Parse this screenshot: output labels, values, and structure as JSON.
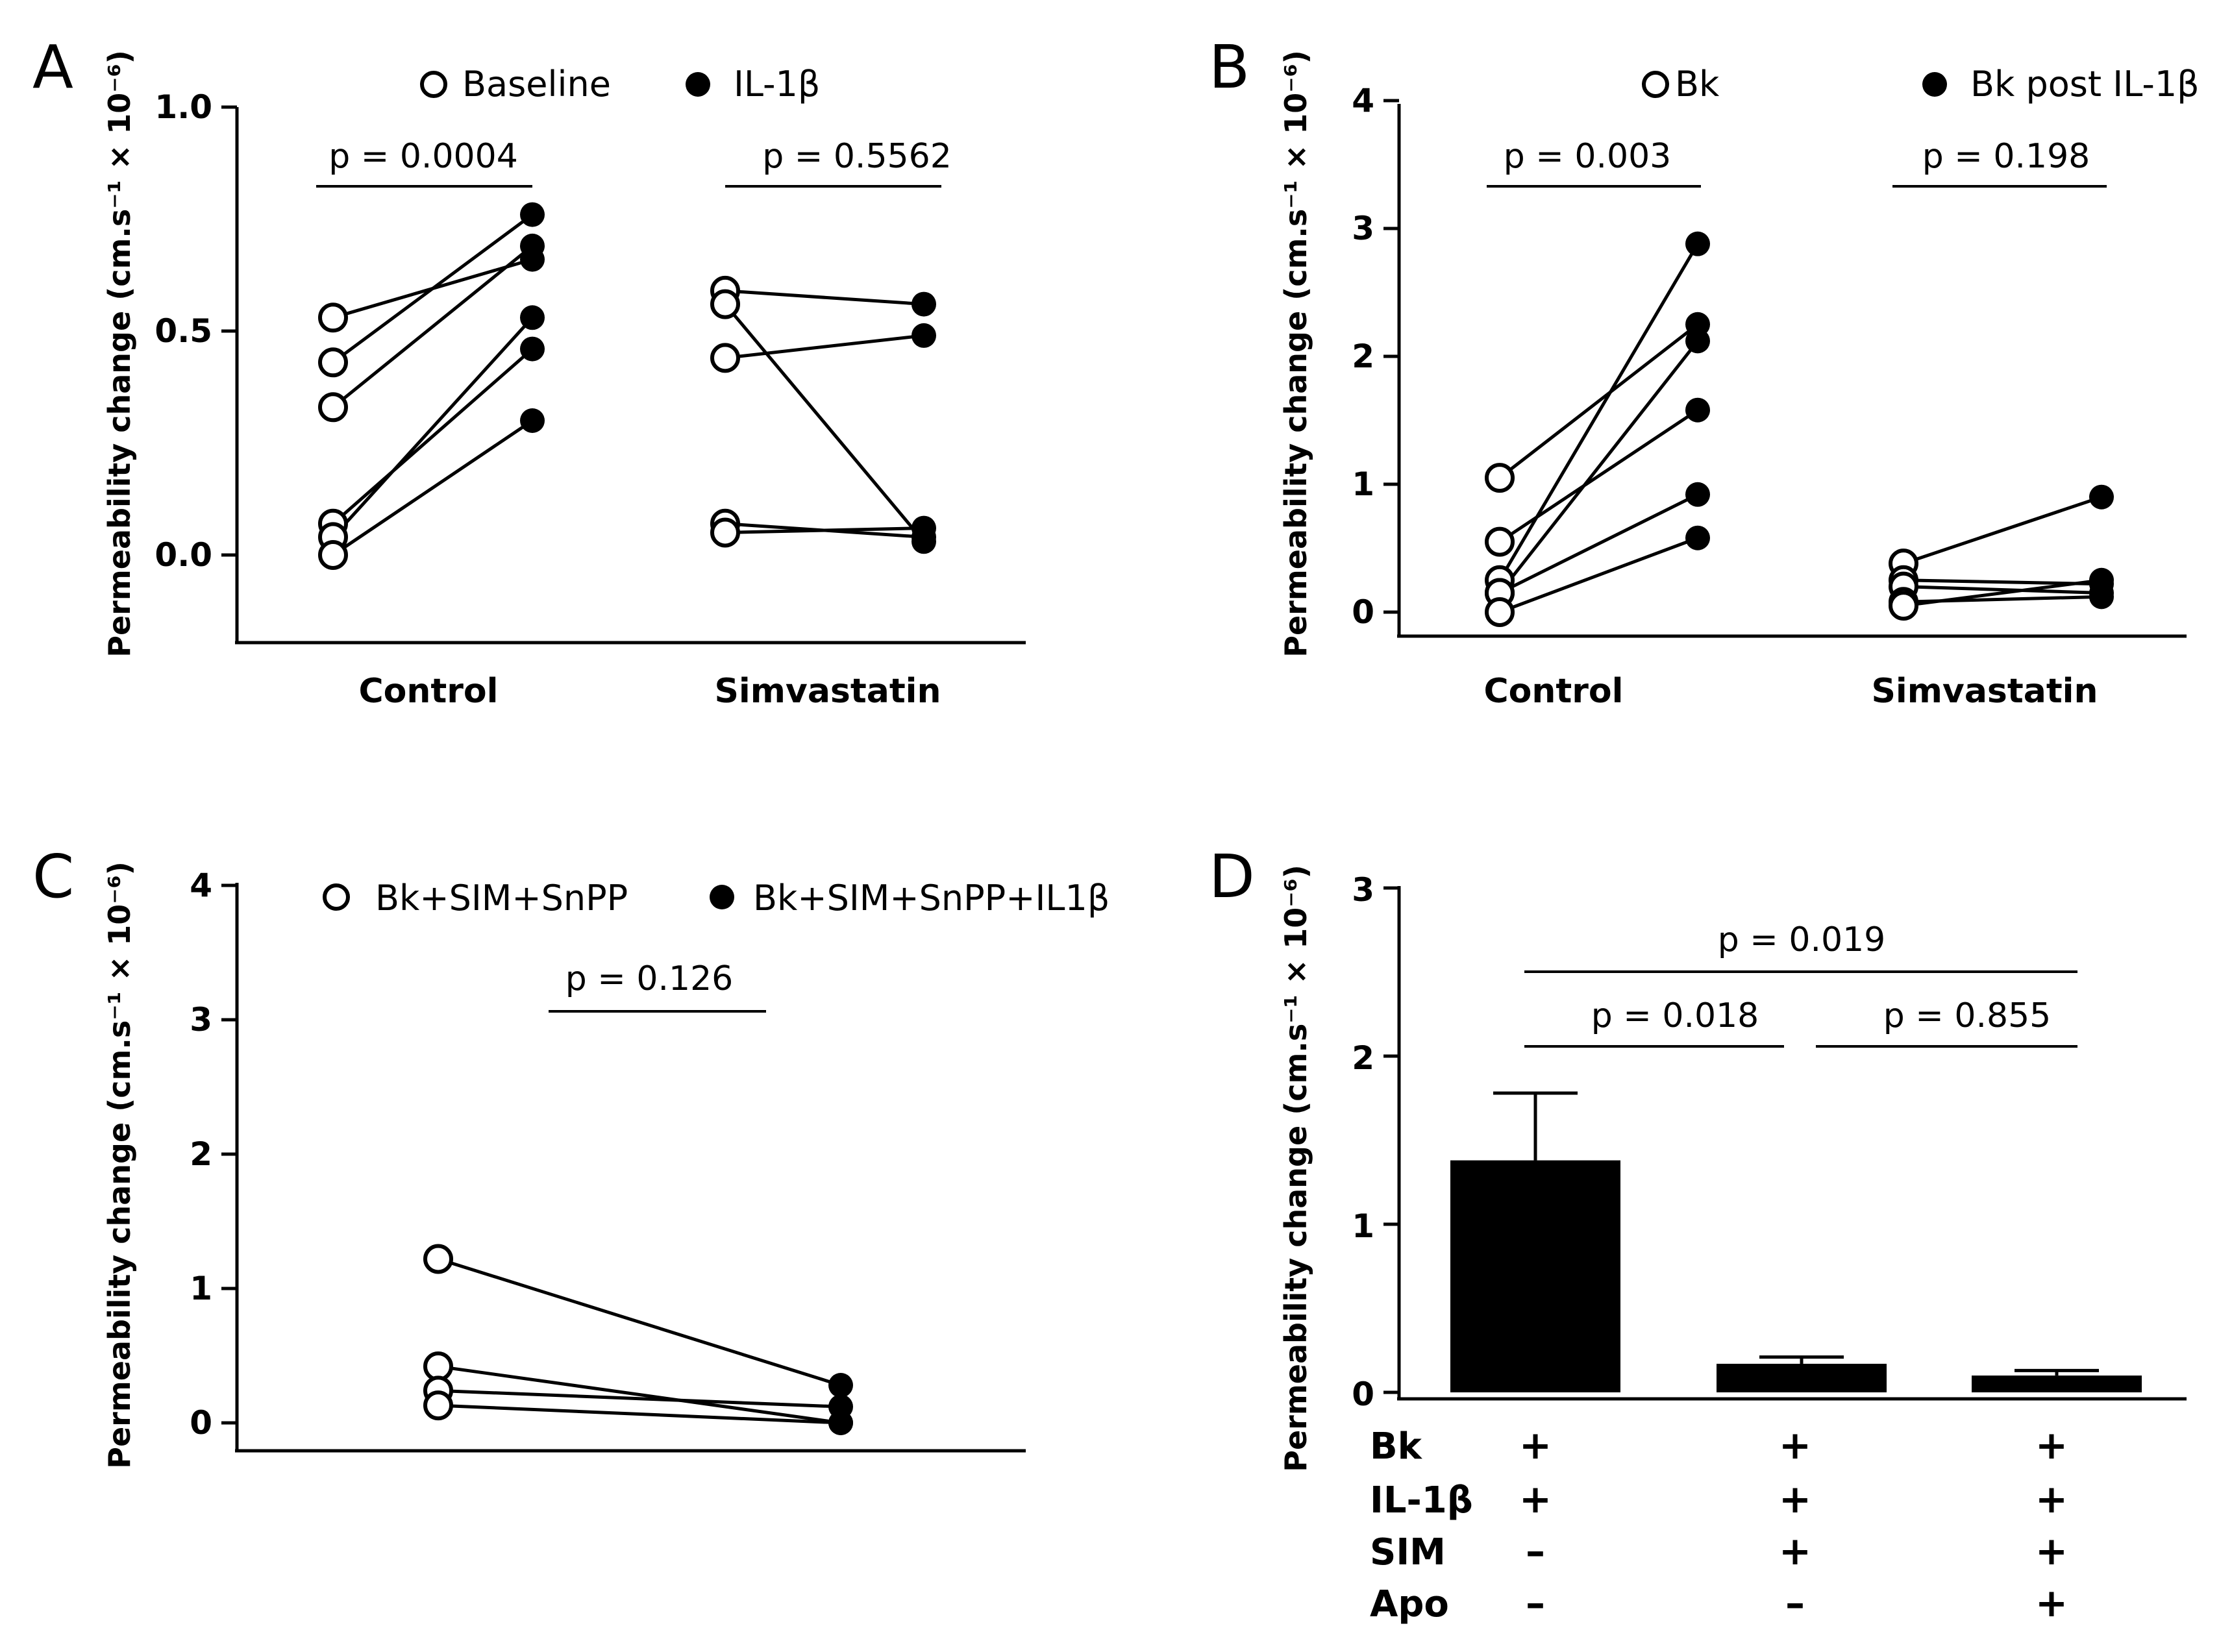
{
  "chart_data": [
    {
      "panel": "A",
      "type": "scatter",
      "ylabel": "Permeability change (cm.s⁻¹ × 10⁻⁶)",
      "ylim": [
        -0.2,
        1.0
      ],
      "yticks": [
        "0.0",
        "0.5",
        "1.0"
      ],
      "yticks_values": [
        0.0,
        0.5,
        1.0
      ],
      "categories": [
        "Control",
        "Simvastatin"
      ],
      "legend": [
        "Baseline",
        "IL-1β"
      ],
      "pvalues": [
        "p = 0.0004",
        "p = 0.5562"
      ],
      "groups": [
        {
          "before": [
            0.53,
            0.43,
            0.33,
            0.07,
            0.04,
            0.0
          ],
          "after": [
            0.66,
            0.76,
            0.69,
            0.46,
            0.53,
            0.3
          ]
        },
        {
          "before": [
            0.59,
            0.56,
            0.44,
            0.07,
            0.05
          ],
          "after": [
            0.56,
            0.03,
            0.49,
            0.04,
            0.06
          ]
        }
      ]
    },
    {
      "panel": "B",
      "type": "scatter",
      "ylabel": "Permeability change (cm.s⁻¹ × 10⁻⁶)",
      "ylim": [
        -0.2,
        4
      ],
      "yticks": [
        "0",
        "1",
        "2",
        "3",
        "4"
      ],
      "yticks_values": [
        0,
        1,
        2,
        3,
        4
      ],
      "categories": [
        "Control",
        "Simvastatin"
      ],
      "legend": [
        "Bk",
        "Bk post IL-1β"
      ],
      "pvalues": [
        "p = 0.003",
        "p = 0.198"
      ],
      "groups": [
        {
          "before": [
            1.05,
            0.55,
            0.25,
            0.15,
            0.15,
            0.0
          ],
          "after": [
            2.25,
            1.58,
            2.88,
            0.92,
            2.12,
            0.58
          ]
        },
        {
          "before": [
            0.38,
            0.25,
            0.2,
            0.08,
            0.05
          ],
          "after": [
            0.9,
            0.22,
            0.15,
            0.12,
            0.25
          ]
        }
      ]
    },
    {
      "panel": "C",
      "type": "scatter",
      "ylabel": "Permeability change (cm.s⁻¹ × 10⁻⁶)",
      "ylim": [
        -0.2,
        4
      ],
      "yticks": [
        "0",
        "1",
        "2",
        "3",
        "4"
      ],
      "yticks_values": [
        0,
        1,
        2,
        3,
        4
      ],
      "legend": [
        "Bk+SIM+SnPP",
        "Bk+SIM+SnPP+IL1β"
      ],
      "pvalues": [
        "p = 0.126"
      ],
      "groups": [
        {
          "before": [
            1.22,
            0.42,
            0.24,
            0.13
          ],
          "after": [
            0.28,
            0.0,
            0.12,
            0.0
          ]
        }
      ]
    },
    {
      "panel": "D",
      "type": "bar",
      "ylabel": "Permeability change (cm.s⁻¹ × 10⁻⁶)",
      "ylim": [
        0,
        3
      ],
      "yticks": [
        "0",
        "1",
        "2",
        "3"
      ],
      "yticks_values": [
        0,
        1,
        2,
        3
      ],
      "values": [
        1.38,
        0.17,
        0.1
      ],
      "errors": [
        0.4,
        0.04,
        0.03
      ],
      "pvalues": [
        "p = 0.019",
        "p = 0.018",
        "p = 0.855"
      ],
      "conditions": [
        {
          "label": "Bk",
          "signs": [
            "+",
            "+",
            "+"
          ]
        },
        {
          "label": "IL-1β",
          "signs": [
            "+",
            "+",
            "+"
          ]
        },
        {
          "label": "SIM",
          "signs": [
            "–",
            "+",
            "+"
          ]
        },
        {
          "label": "Apo",
          "signs": [
            "–",
            "–",
            "+"
          ]
        }
      ]
    }
  ],
  "panel_letters": [
    "A",
    "B",
    "C",
    "D"
  ]
}
